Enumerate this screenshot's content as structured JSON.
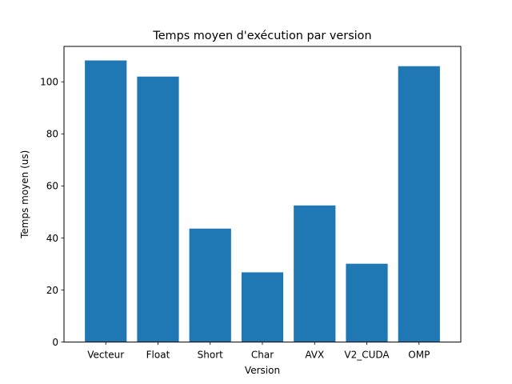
{
  "chart_data": {
    "type": "bar",
    "title": "Temps moyen d'exécution par version",
    "xlabel": "Version",
    "ylabel": "Temps moyen (us)",
    "categories": [
      "Vecteur",
      "Float",
      "Short",
      "Char",
      "AVX",
      "V2_CUDA",
      "OMP"
    ],
    "values": [
      108.2,
      102.0,
      43.6,
      26.8,
      52.5,
      30.1,
      106.0
    ],
    "ylim": [
      0,
      113.6
    ],
    "yticks": [
      0,
      20,
      40,
      60,
      80,
      100
    ],
    "ytick_labels": [
      "0",
      "20",
      "40",
      "60",
      "80",
      "100"
    ],
    "bar_color": "#1f77b4",
    "grid": false,
    "legend": "none"
  }
}
